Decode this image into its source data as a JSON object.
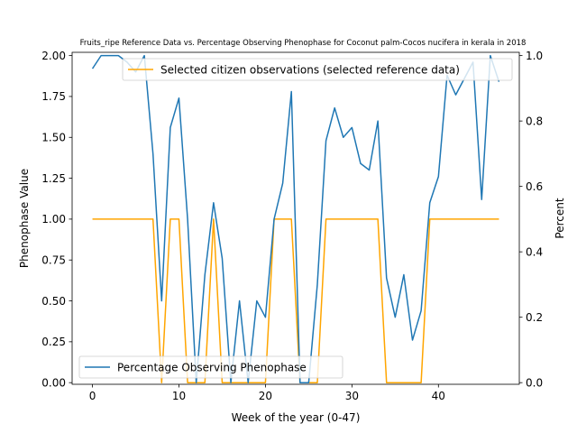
{
  "chart_data": {
    "type": "line",
    "title": "Fruits_ripe Reference Data vs. Percentage Observing Phenophase for Coconut palm-Cocos nucifera in kerala in 2018",
    "xlabel": "Week of the year (0-47)",
    "ylabel_left": "Phenophase Value",
    "ylabel_right": "Percent",
    "xlim": [
      -2.35,
      49.35
    ],
    "ylim_left": [
      -0.01,
      2.02
    ],
    "ylim_right": [
      -0.005,
      1.01
    ],
    "x_ticks": [
      0,
      10,
      20,
      30,
      40
    ],
    "y_ticks_left": [
      0.0,
      0.25,
      0.5,
      0.75,
      1.0,
      1.25,
      1.5,
      1.75,
      2.0
    ],
    "y_ticks_right": [
      0.0,
      0.2,
      0.4,
      0.6,
      0.8,
      1.0
    ],
    "series": [
      {
        "name": "Selected citizen observations (selected reference data)",
        "axis": "left",
        "color": "#ffa500",
        "x": [
          0,
          1,
          2,
          3,
          4,
          5,
          6,
          7,
          8,
          9,
          10,
          11,
          12,
          13,
          14,
          15,
          16,
          17,
          18,
          19,
          20,
          21,
          22,
          23,
          24,
          25,
          26,
          27,
          28,
          29,
          30,
          31,
          32,
          33,
          34,
          35,
          36,
          37,
          38,
          39,
          40,
          41,
          42,
          43,
          44,
          45,
          46,
          47
        ],
        "values": [
          1,
          1,
          1,
          1,
          1,
          1,
          1,
          1,
          0,
          1,
          1,
          0,
          0,
          0,
          1,
          0,
          0,
          0,
          0,
          0,
          0,
          1,
          1,
          1,
          0,
          0,
          0,
          1,
          1,
          1,
          1,
          1,
          1,
          1,
          0,
          0,
          0,
          0,
          0,
          1,
          1,
          1,
          1,
          1,
          1,
          1,
          1,
          1
        ]
      },
      {
        "name": "Percentage Observing Phenophase",
        "axis": "right",
        "color": "#1f77b4",
        "x": [
          0,
          1,
          2,
          3,
          4,
          5,
          6,
          7,
          8,
          9,
          10,
          11,
          12,
          13,
          14,
          15,
          16,
          17,
          18,
          19,
          20,
          21,
          22,
          23,
          24,
          25,
          26,
          27,
          28,
          29,
          30,
          31,
          32,
          33,
          34,
          35,
          36,
          37,
          38,
          39,
          40,
          41,
          42,
          43,
          44,
          45,
          46,
          47
        ],
        "values": [
          0.96,
          1.0,
          1.0,
          1.0,
          0.98,
          0.95,
          1.0,
          0.7,
          0.25,
          0.78,
          0.87,
          0.5,
          0.0,
          0.33,
          0.55,
          0.38,
          0.0,
          0.25,
          0.0,
          0.25,
          0.2,
          0.5,
          0.61,
          0.89,
          0.0,
          0.0,
          0.3,
          0.74,
          0.84,
          0.75,
          0.78,
          0.67,
          0.65,
          0.8,
          0.32,
          0.2,
          0.33,
          0.13,
          0.22,
          0.55,
          0.63,
          0.94,
          0.88,
          0.93,
          0.98,
          0.56,
          1.0,
          0.92
        ]
      }
    ],
    "legend": [
      {
        "label": "Selected citizen observations (selected reference data)",
        "placement": "top-right"
      },
      {
        "label": "Percentage Observing Phenophase",
        "placement": "bottom-left"
      }
    ],
    "grid": false
  }
}
